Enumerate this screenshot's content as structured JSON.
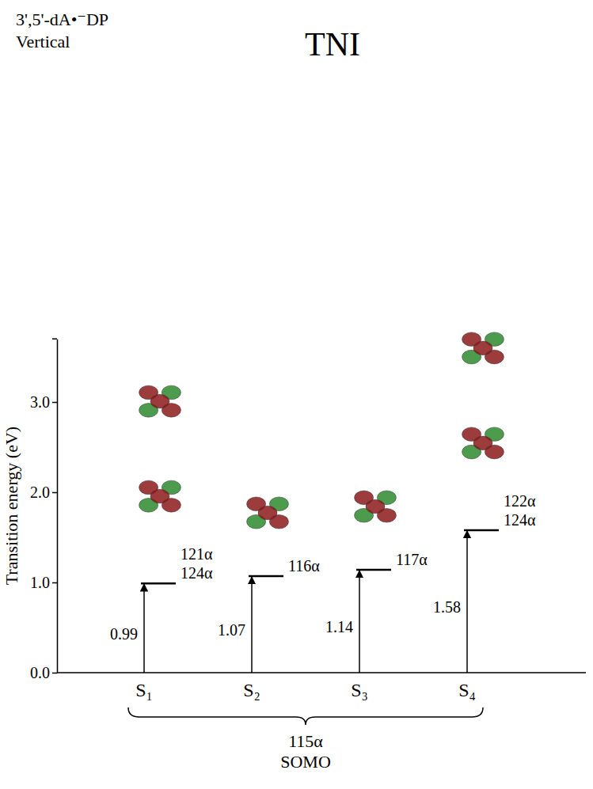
{
  "chart_data": {
    "type": "energy_level",
    "title": "TNI",
    "annotations": [
      "3',5'-dA•⁻DP",
      "Vertical"
    ],
    "y_label": "Transition energy (eV)",
    "categories": [
      "S₁",
      "S₂",
      "S₃",
      "S₄"
    ],
    "values": [
      0.99,
      1.07,
      1.14,
      1.58
    ],
    "orbitals": [
      [
        "121α",
        "124α"
      ],
      [
        "116α"
      ],
      [
        "117α"
      ],
      [
        "122α",
        "124α"
      ]
    ],
    "reference": [
      "115α",
      "SOMO"
    ],
    "ylim": [
      0,
      3.7
    ],
    "yticks": [
      {
        "value": 0,
        "label": "0.0"
      },
      {
        "value": 1,
        "label": "1.0"
      },
      {
        "value": 2,
        "label": "2.0"
      },
      {
        "value": 3,
        "label": "3.0"
      }
    ],
    "data_labels": true,
    "color": "#000000"
  }
}
